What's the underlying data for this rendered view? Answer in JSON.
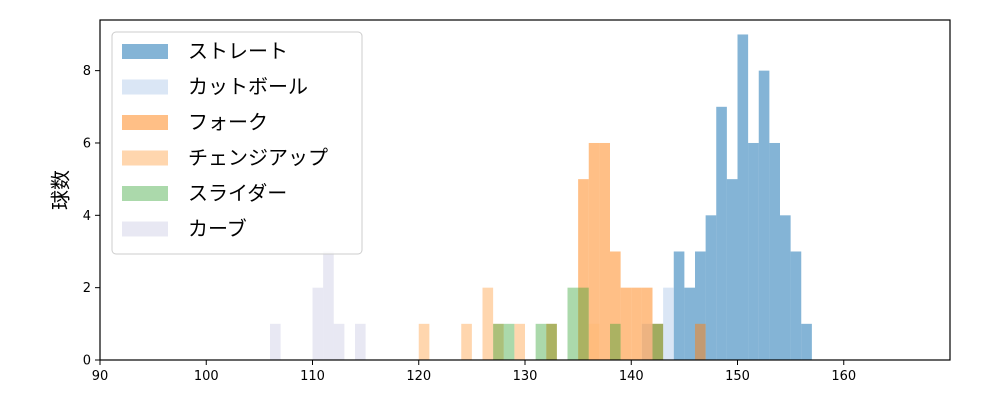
{
  "chart_data": {
    "type": "bar",
    "title": "",
    "xlabel": "",
    "ylabel": "球数",
    "xlim": [
      90,
      170
    ],
    "ylim": [
      0,
      9.4
    ],
    "xticks": [
      90,
      100,
      110,
      120,
      130,
      140,
      150,
      160
    ],
    "yticks": [
      0,
      2,
      4,
      6,
      8
    ],
    "grid": false,
    "legend_position": "top-left",
    "bin_width": 1,
    "series": [
      {
        "name": "ストレート",
        "color": "#1f77b4",
        "opacity": 0.55,
        "bins": [
          [
            144,
            3
          ],
          [
            145,
            2
          ],
          [
            146,
            3
          ],
          [
            147,
            4
          ],
          [
            148,
            7
          ],
          [
            149,
            5
          ],
          [
            150,
            9
          ],
          [
            151,
            6
          ],
          [
            152,
            8
          ],
          [
            153,
            6
          ],
          [
            154,
            4
          ],
          [
            155,
            3
          ],
          [
            156,
            1
          ]
        ]
      },
      {
        "name": "カットボール",
        "color": "#aec7e8",
        "opacity": 0.45,
        "bins": [
          [
            141,
            1
          ],
          [
            142,
            1
          ],
          [
            143,
            2
          ]
        ]
      },
      {
        "name": "フォーク",
        "color": "#ff7f0e",
        "opacity": 0.5,
        "bins": [
          [
            132,
            1
          ],
          [
            135,
            5
          ],
          [
            136,
            6
          ],
          [
            137,
            6
          ],
          [
            138,
            3
          ],
          [
            139,
            2
          ],
          [
            140,
            2
          ],
          [
            141,
            2
          ],
          [
            142,
            1
          ],
          [
            146,
            1
          ]
        ]
      },
      {
        "name": "チェンジアップ",
        "color": "#ffbb78",
        "opacity": 0.6,
        "bins": [
          [
            120,
            1
          ],
          [
            124,
            1
          ],
          [
            126,
            2
          ],
          [
            127,
            1
          ],
          [
            129,
            1
          ],
          [
            136,
            1
          ]
        ]
      },
      {
        "name": "スライダー",
        "color": "#2ca02c",
        "opacity": 0.4,
        "bins": [
          [
            127,
            1
          ],
          [
            128,
            1
          ],
          [
            131,
            1
          ],
          [
            132,
            1
          ],
          [
            134,
            2
          ],
          [
            135,
            2
          ],
          [
            138,
            1
          ],
          [
            142,
            1
          ]
        ]
      },
      {
        "name": "カーブ",
        "color": "#c5c6e0",
        "opacity": 0.4,
        "bins": [
          [
            106,
            1
          ],
          [
            110,
            2
          ],
          [
            111,
            3
          ],
          [
            112,
            1
          ],
          [
            114,
            1
          ]
        ]
      }
    ]
  }
}
